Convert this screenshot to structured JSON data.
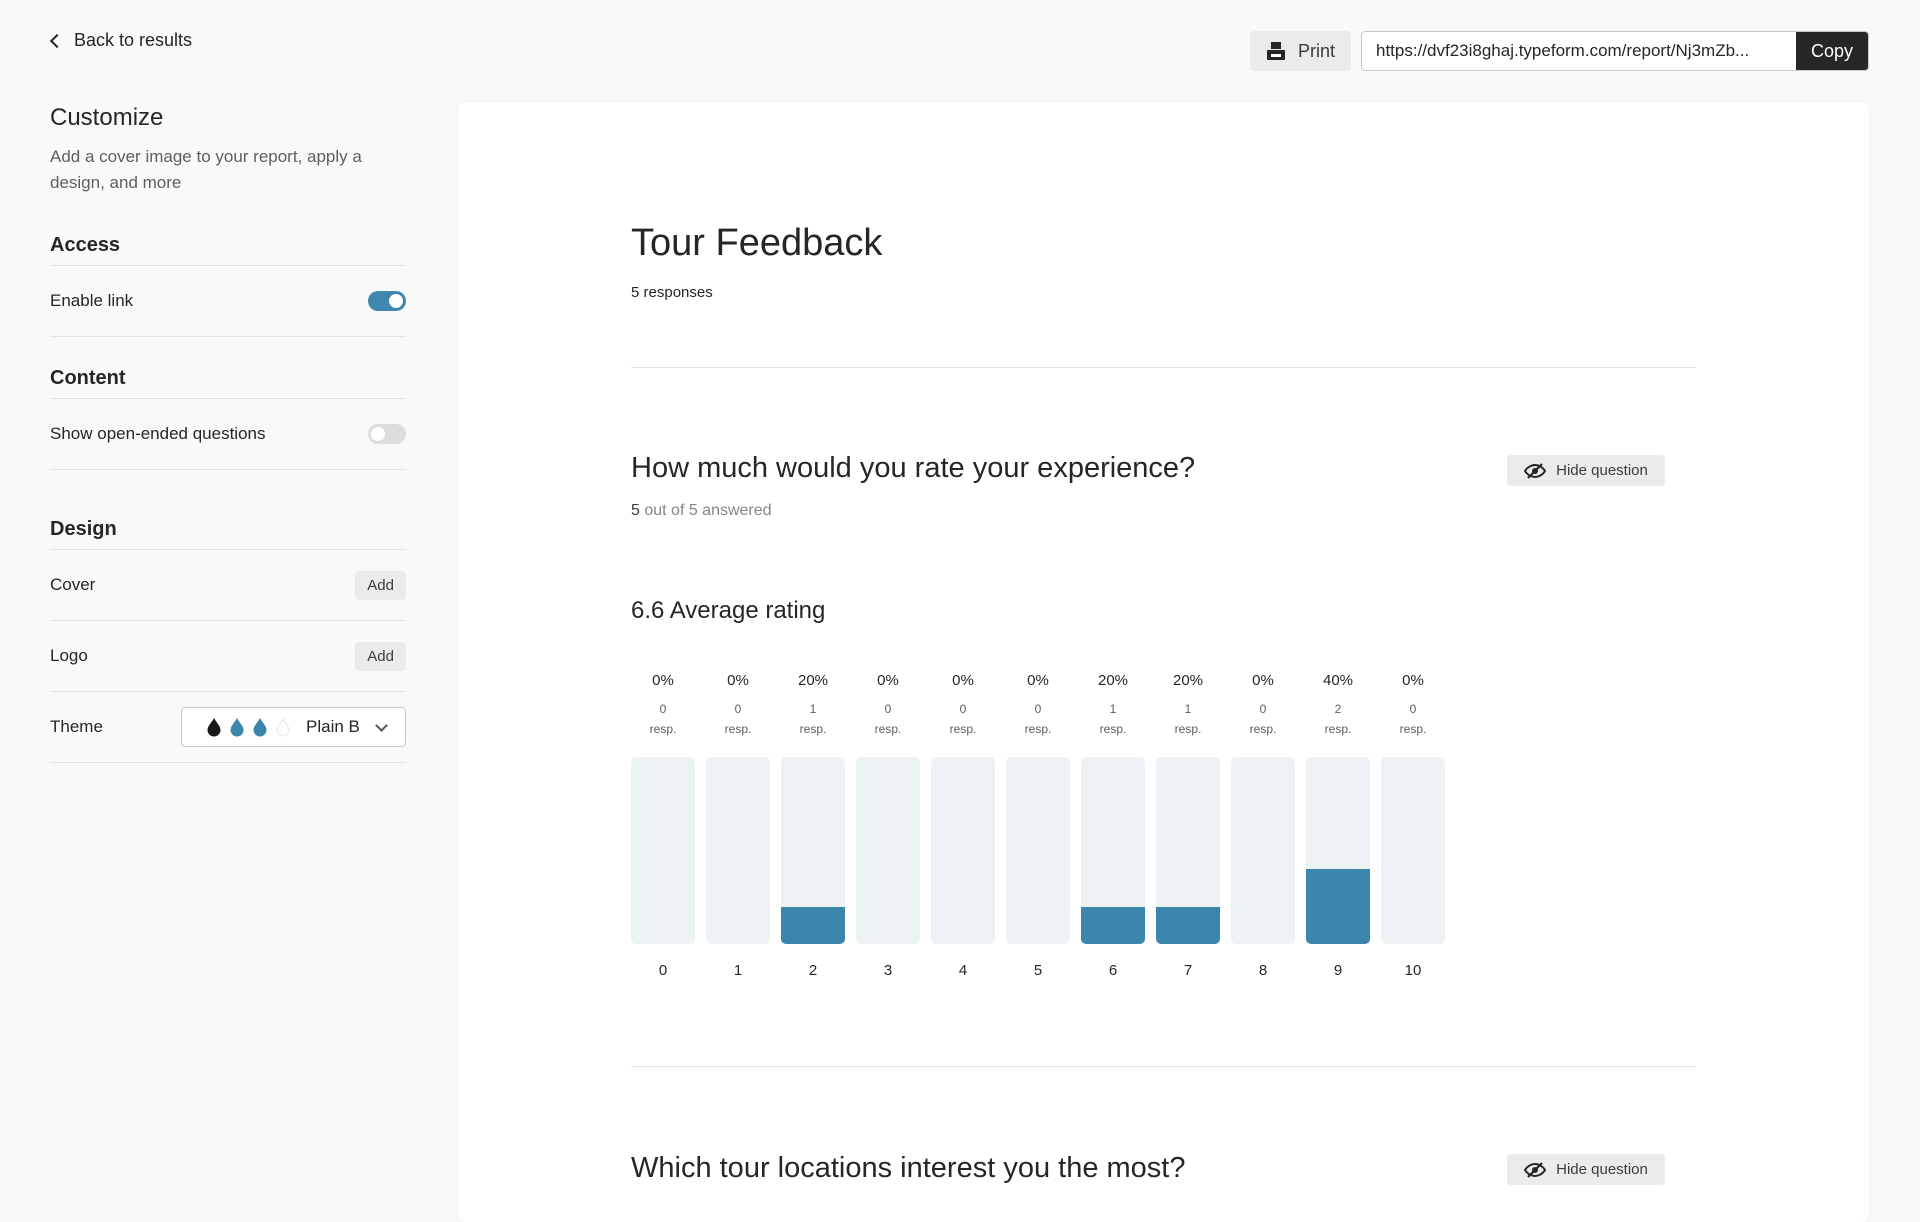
{
  "topbar": {
    "back_label": "Back to results",
    "print_label": "Print",
    "share_url": "https://dvf23i8ghaj.typeform.com/report/Nj3mZb...",
    "copy_label": "Copy"
  },
  "sidebar": {
    "title": "Customize",
    "subtitle": "Add a cover image to your report, apply a design, and more",
    "access": {
      "heading": "Access",
      "enable_link_label": "Enable link",
      "enable_link_on": true
    },
    "content": {
      "heading": "Content",
      "open_ended_label": "Show open-ended questions",
      "open_ended_on": false
    },
    "design": {
      "heading": "Design",
      "cover_label": "Cover",
      "logo_label": "Logo",
      "add_label": "Add",
      "theme_label": "Theme",
      "theme_value": "Plain B",
      "theme_colors": [
        "#191919",
        "#3c86ad",
        "#3c86ad",
        "#ffffff"
      ]
    }
  },
  "report": {
    "title": "Tour Feedback",
    "responses": "5 responses",
    "questions": [
      {
        "title": "How much would you rate your experience?",
        "answered_count": "5",
        "answered_rest": "out of 5 answered",
        "hide_label": "Hide question",
        "average": "6.6 Average rating"
      },
      {
        "title": "Which tour locations interest you the most?",
        "hide_label": "Hide question"
      }
    ]
  },
  "colors": {
    "accent": "#3c86ad",
    "bar_bg": "#edf2f5"
  },
  "chart_data": {
    "type": "bar",
    "categories": [
      "0",
      "1",
      "2",
      "3",
      "4",
      "5",
      "6",
      "7",
      "8",
      "9",
      "10"
    ],
    "values": [
      0,
      0,
      20,
      0,
      0,
      0,
      20,
      20,
      0,
      40,
      0
    ],
    "percent_labels": [
      "0%",
      "0%",
      "20%",
      "0%",
      "0%",
      "0%",
      "20%",
      "20%",
      "0%",
      "40%",
      "0%"
    ],
    "counts": [
      "0",
      "0",
      "1",
      "0",
      "0",
      "0",
      "1",
      "1",
      "0",
      "2",
      "0"
    ],
    "count_unit": "resp.",
    "ylim": [
      0,
      100
    ]
  }
}
